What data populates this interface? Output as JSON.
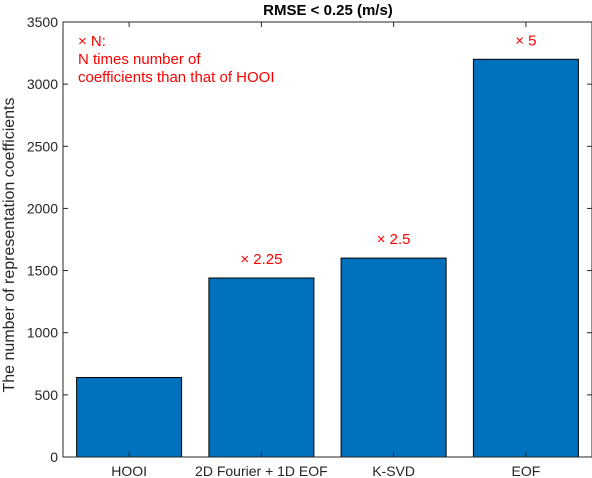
{
  "chart_data": {
    "type": "bar",
    "title": "RMSE < 0.25 (m/s)",
    "xlabel": "",
    "ylabel": "The number of representation coefficients",
    "categories": [
      "HOOI",
      "2D Fourier + 1D EOF",
      "K-SVD",
      "EOF"
    ],
    "values": [
      640,
      1440,
      1600,
      3200
    ],
    "ylim": [
      0,
      3500
    ],
    "yticks": [
      0,
      500,
      1000,
      1500,
      2000,
      2500,
      3000,
      3500
    ],
    "bar_labels": [
      "",
      "× 2.25",
      "× 2.5",
      "× 5"
    ],
    "annotation": {
      "lines": [
        "× N:",
        "N times number of",
        "coefficients than that of HOOI"
      ]
    },
    "grid": false,
    "colors": {
      "bar": "#0072bd",
      "annotation": "#ff0000",
      "axis": "#262626"
    }
  }
}
